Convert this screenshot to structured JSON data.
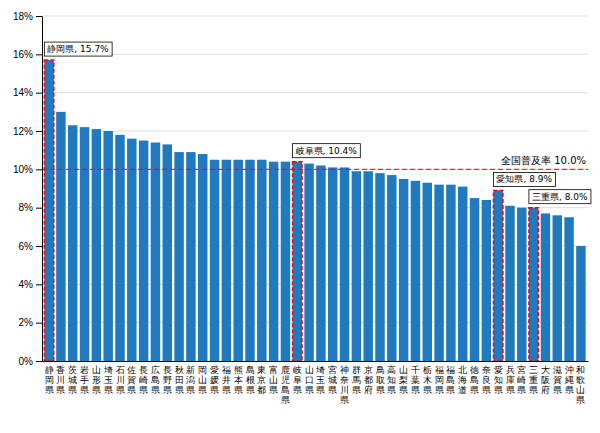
{
  "chart_data": {
    "type": "bar",
    "categories": [
      "静\n岡\n県",
      "香\n川\n県",
      "茨\n城\n県",
      "岩\n手\n県",
      "山\n形\n県",
      "埼\n玉\n県",
      "石\n川\n県",
      "佐\n賀\n県",
      "長\n崎\n県",
      "広\n島\n県",
      "長\n野\n県",
      "秋\n田\n県",
      "新\n潟\n県",
      "岡\n山\n県",
      "愛\n媛\n県",
      "福\n井\n県",
      "熊\n本\n県",
      "島\n根\n県",
      "東\n京\n都",
      "富\n山\n県",
      "鹿\n児\n島\n県",
      "岐\n阜\n県",
      "山\n口\n県",
      "埼\n玉\n県",
      "宮\n城\n県",
      "神\n奈\n川\n県",
      "群\n馬\n県",
      "京\n都\n府",
      "鳥\n取\n県",
      "高\n知\n県",
      "山\n梨\n県",
      "千\n葉\n県",
      "栃\n木\n県",
      "福\n岡\n県",
      "福\n島\n県",
      "北\n海\n道",
      "徳\n島\n県",
      "奈\n良\n県",
      "愛\n知\n県",
      "兵\n庫\n県",
      "宮\n崎\n県",
      "三\n重\n県",
      "大\n阪\n府",
      "滋\n賀\n県",
      "沖\n縄\n県",
      "和\n歌\n山\n県"
    ],
    "values": [
      0.157,
      0.13,
      0.123,
      0.122,
      0.121,
      0.12,
      0.118,
      0.116,
      0.115,
      0.114,
      0.113,
      0.109,
      0.109,
      0.108,
      0.105,
      0.105,
      0.105,
      0.105,
      0.105,
      0.104,
      0.104,
      0.104,
      0.103,
      0.102,
      0.101,
      0.101,
      0.099,
      0.099,
      0.098,
      0.097,
      0.095,
      0.094,
      0.093,
      0.092,
      0.092,
      0.091,
      0.085,
      0.084,
      0.089,
      0.081,
      0.08,
      0.08,
      0.077,
      0.076,
      0.075,
      0.06
    ],
    "color": "#1f7abf",
    "ylim": [
      0,
      0.18
    ],
    "yticks": [
      {
        "value": 0,
        "label": "0%"
      },
      {
        "value": 0.02,
        "label": "2%"
      },
      {
        "value": 0.04,
        "label": "4%"
      },
      {
        "value": 0.06,
        "label": "6%"
      },
      {
        "value": 0.08,
        "label": "8%"
      },
      {
        "value": 0.1,
        "label": "10%"
      },
      {
        "value": 0.12,
        "label": "12%"
      },
      {
        "value": 0.14,
        "label": "14%"
      },
      {
        "value": 0.16,
        "label": "16%"
      },
      {
        "value": 0.18,
        "label": "18%"
      }
    ],
    "grid": true,
    "reference_line": {
      "value": 0.1,
      "label": "全国普及率 10.0%",
      "color": "red",
      "line_style": "dashed"
    },
    "annotations": [
      {
        "text": "静岡県, 15.7%",
        "index": 0,
        "color": "red"
      },
      {
        "text": "岐阜県, 10.4%",
        "index": 21,
        "color": "red"
      },
      {
        "text": "愛知県, 8.9%",
        "index": 38,
        "color": "red"
      },
      {
        "text": "三重県, 8.0%",
        "index": 41,
        "color": "red"
      }
    ]
  }
}
